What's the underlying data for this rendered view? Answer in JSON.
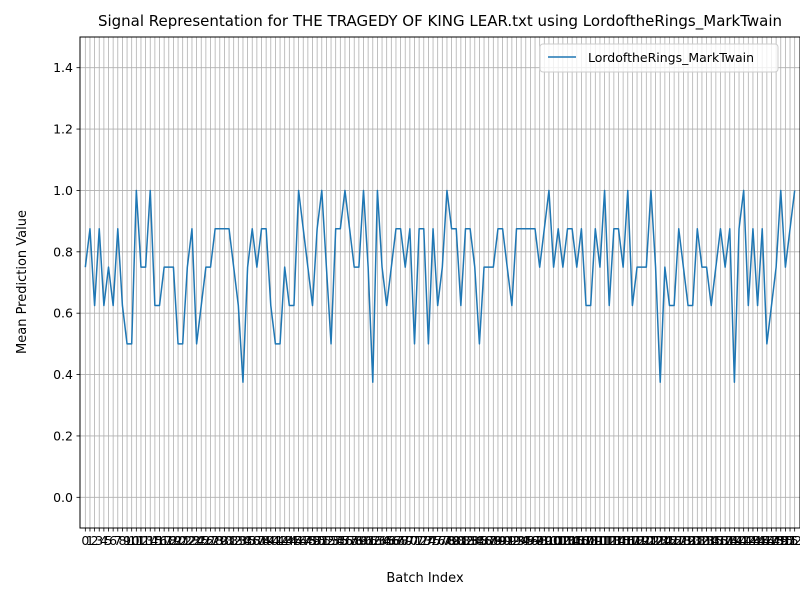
{
  "chart_data": {
    "type": "line",
    "title": "Signal Representation for THE TRAGEDY OF KING LEAR.txt using LordoftheRings_MarkTwain",
    "xlabel": "Batch Index",
    "ylabel": "Mean Prediction Value",
    "ylim": [
      -0.1,
      1.5
    ],
    "xlim": [
      -1.15,
      154.15
    ],
    "yticks": [
      0.0,
      0.2,
      0.4,
      0.6,
      0.8,
      1.0,
      1.2,
      1.4
    ],
    "grid": true,
    "legend": "top-right",
    "series": [
      {
        "name": "LordoftheRings_MarkTwain",
        "color": "#1f77b4",
        "values": [
          0.75,
          0.875,
          0.625,
          0.875,
          0.625,
          0.75,
          0.625,
          0.875,
          0.625,
          0.5,
          0.5,
          1.0,
          0.75,
          0.75,
          1.0,
          0.625,
          0.625,
          0.75,
          0.75,
          0.75,
          0.5,
          0.5,
          0.75,
          0.875,
          0.5,
          0.625,
          0.75,
          0.75,
          0.875,
          0.875,
          0.875,
          0.875,
          0.75,
          0.625,
          0.375,
          0.75,
          0.875,
          0.75,
          0.875,
          0.875,
          0.625,
          0.5,
          0.5,
          0.75,
          0.625,
          0.625,
          1.0,
          0.875,
          0.75,
          0.625,
          0.875,
          1.0,
          0.75,
          0.5,
          0.875,
          0.875,
          1.0,
          0.875,
          0.75,
          0.75,
          1.0,
          0.75,
          0.375,
          1.0,
          0.75,
          0.625,
          0.75,
          0.875,
          0.875,
          0.75,
          0.875,
          0.5,
          0.875,
          0.875,
          0.5,
          0.875,
          0.625,
          0.75,
          1.0,
          0.875,
          0.875,
          0.625,
          0.875,
          0.875,
          0.75,
          0.5,
          0.75,
          0.75,
          0.75,
          0.875,
          0.875,
          0.75,
          0.625,
          0.875,
          0.875,
          0.875,
          0.875,
          0.875,
          0.75,
          0.875,
          1.0,
          0.75,
          0.875,
          0.75,
          0.875,
          0.875,
          0.75,
          0.875,
          0.625,
          0.625,
          0.875,
          0.75,
          1.0,
          0.625,
          0.875,
          0.875,
          0.75,
          1.0,
          0.625,
          0.75,
          0.75,
          0.75,
          1.0,
          0.75,
          0.375,
          0.75,
          0.625,
          0.625,
          0.875,
          0.75,
          0.625,
          0.625,
          0.875,
          0.75,
          0.75,
          0.625,
          0.75,
          0.875,
          0.75,
          0.875,
          0.375,
          0.875,
          1.0,
          0.625,
          0.875,
          0.625,
          0.875,
          0.5,
          0.625,
          0.75,
          1.0,
          0.75,
          0.875,
          1.0
        ]
      }
    ]
  }
}
